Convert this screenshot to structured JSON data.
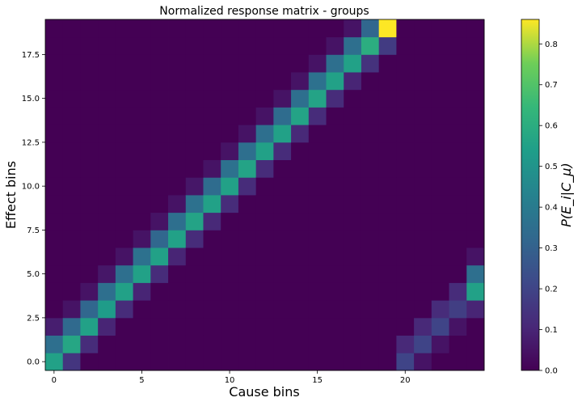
{
  "chart_data": {
    "type": "heatmap",
    "title": "Normalized response matrix - groups",
    "xlabel": "Cause bins",
    "ylabel": "Effect bins",
    "colorbar_label": "P(E_i|C_μ)",
    "colormap": "viridis",
    "n_cause_bins": 25,
    "n_effect_bins": 20,
    "xlim": [
      -0.5,
      24.5
    ],
    "ylim": [
      -0.5,
      19.5
    ],
    "x_ticks": [
      0,
      5,
      10,
      15,
      20
    ],
    "x_tick_labels": [
      "0",
      "5",
      "10",
      "15",
      "20"
    ],
    "y_ticks": [
      0.0,
      2.5,
      5.0,
      7.5,
      10.0,
      12.5,
      15.0,
      17.5
    ],
    "y_tick_labels": [
      "0.0",
      "2.5",
      "5.0",
      "7.5",
      "10.0",
      "12.5",
      "15.0",
      "17.5"
    ],
    "colorbar_range": [
      0.0,
      0.86
    ],
    "colorbar_ticks": [
      0.0,
      0.1,
      0.2,
      0.3,
      0.4,
      0.5,
      0.6,
      0.7,
      0.8
    ],
    "colorbar_tick_labels": [
      "0.0",
      "0.1",
      "0.2",
      "0.3",
      "0.4",
      "0.5",
      "0.6",
      "0.7",
      "0.8"
    ],
    "background_value": 0.0,
    "cells": [
      {
        "x": 0,
        "y": 0,
        "v": 0.55
      },
      {
        "x": 0,
        "y": 1,
        "v": 0.35
      },
      {
        "x": 0,
        "y": 2,
        "v": 0.08
      },
      {
        "x": 1,
        "y": 0,
        "v": 0.15
      },
      {
        "x": 1,
        "y": 1,
        "v": 0.57
      },
      {
        "x": 1,
        "y": 2,
        "v": 0.33
      },
      {
        "x": 1,
        "y": 3,
        "v": 0.05
      },
      {
        "x": 2,
        "y": 1,
        "v": 0.12
      },
      {
        "x": 2,
        "y": 2,
        "v": 0.55
      },
      {
        "x": 2,
        "y": 3,
        "v": 0.32
      },
      {
        "x": 2,
        "y": 4,
        "v": 0.05
      },
      {
        "x": 3,
        "y": 2,
        "v": 0.1
      },
      {
        "x": 3,
        "y": 3,
        "v": 0.53
      },
      {
        "x": 3,
        "y": 4,
        "v": 0.35
      },
      {
        "x": 3,
        "y": 5,
        "v": 0.06
      },
      {
        "x": 4,
        "y": 3,
        "v": 0.12
      },
      {
        "x": 4,
        "y": 4,
        "v": 0.55
      },
      {
        "x": 4,
        "y": 5,
        "v": 0.35
      },
      {
        "x": 4,
        "y": 6,
        "v": 0.05
      },
      {
        "x": 5,
        "y": 4,
        "v": 0.1
      },
      {
        "x": 5,
        "y": 5,
        "v": 0.55
      },
      {
        "x": 5,
        "y": 6,
        "v": 0.36
      },
      {
        "x": 5,
        "y": 7,
        "v": 0.05
      },
      {
        "x": 6,
        "y": 5,
        "v": 0.12
      },
      {
        "x": 6,
        "y": 6,
        "v": 0.55
      },
      {
        "x": 6,
        "y": 7,
        "v": 0.32
      },
      {
        "x": 6,
        "y": 8,
        "v": 0.05
      },
      {
        "x": 7,
        "y": 6,
        "v": 0.1
      },
      {
        "x": 7,
        "y": 7,
        "v": 0.55
      },
      {
        "x": 7,
        "y": 8,
        "v": 0.35
      },
      {
        "x": 7,
        "y": 9,
        "v": 0.05
      },
      {
        "x": 8,
        "y": 7,
        "v": 0.12
      },
      {
        "x": 8,
        "y": 8,
        "v": 0.56
      },
      {
        "x": 8,
        "y": 9,
        "v": 0.36
      },
      {
        "x": 8,
        "y": 10,
        "v": 0.06
      },
      {
        "x": 9,
        "y": 8,
        "v": 0.11
      },
      {
        "x": 9,
        "y": 9,
        "v": 0.55
      },
      {
        "x": 9,
        "y": 10,
        "v": 0.34
      },
      {
        "x": 9,
        "y": 11,
        "v": 0.05
      },
      {
        "x": 10,
        "y": 9,
        "v": 0.12
      },
      {
        "x": 10,
        "y": 10,
        "v": 0.55
      },
      {
        "x": 10,
        "y": 11,
        "v": 0.36
      },
      {
        "x": 10,
        "y": 12,
        "v": 0.05
      },
      {
        "x": 11,
        "y": 10,
        "v": 0.12
      },
      {
        "x": 11,
        "y": 11,
        "v": 0.56
      },
      {
        "x": 11,
        "y": 12,
        "v": 0.35
      },
      {
        "x": 11,
        "y": 13,
        "v": 0.05
      },
      {
        "x": 12,
        "y": 11,
        "v": 0.12
      },
      {
        "x": 12,
        "y": 12,
        "v": 0.55
      },
      {
        "x": 12,
        "y": 13,
        "v": 0.35
      },
      {
        "x": 12,
        "y": 14,
        "v": 0.05
      },
      {
        "x": 13,
        "y": 12,
        "v": 0.12
      },
      {
        "x": 13,
        "y": 13,
        "v": 0.55
      },
      {
        "x": 13,
        "y": 14,
        "v": 0.34
      },
      {
        "x": 13,
        "y": 15,
        "v": 0.05
      },
      {
        "x": 14,
        "y": 13,
        "v": 0.11
      },
      {
        "x": 14,
        "y": 14,
        "v": 0.56
      },
      {
        "x": 14,
        "y": 15,
        "v": 0.35
      },
      {
        "x": 14,
        "y": 16,
        "v": 0.05
      },
      {
        "x": 15,
        "y": 14,
        "v": 0.12
      },
      {
        "x": 15,
        "y": 15,
        "v": 0.56
      },
      {
        "x": 15,
        "y": 16,
        "v": 0.36
      },
      {
        "x": 15,
        "y": 17,
        "v": 0.05
      },
      {
        "x": 16,
        "y": 15,
        "v": 0.12
      },
      {
        "x": 16,
        "y": 16,
        "v": 0.55
      },
      {
        "x": 16,
        "y": 17,
        "v": 0.35
      },
      {
        "x": 16,
        "y": 18,
        "v": 0.05
      },
      {
        "x": 17,
        "y": 16,
        "v": 0.1
      },
      {
        "x": 17,
        "y": 17,
        "v": 0.55
      },
      {
        "x": 17,
        "y": 18,
        "v": 0.35
      },
      {
        "x": 17,
        "y": 19,
        "v": 0.05
      },
      {
        "x": 18,
        "y": 17,
        "v": 0.14
      },
      {
        "x": 18,
        "y": 18,
        "v": 0.6
      },
      {
        "x": 18,
        "y": 19,
        "v": 0.32
      },
      {
        "x": 19,
        "y": 18,
        "v": 0.17
      },
      {
        "x": 19,
        "y": 19,
        "v": 0.86
      },
      {
        "x": 20,
        "y": 0,
        "v": 0.2
      },
      {
        "x": 20,
        "y": 1,
        "v": 0.11
      },
      {
        "x": 21,
        "y": 0,
        "v": 0.05
      },
      {
        "x": 21,
        "y": 1,
        "v": 0.2
      },
      {
        "x": 21,
        "y": 2,
        "v": 0.11
      },
      {
        "x": 22,
        "y": 1,
        "v": 0.05
      },
      {
        "x": 22,
        "y": 2,
        "v": 0.2
      },
      {
        "x": 22,
        "y": 3,
        "v": 0.12
      },
      {
        "x": 23,
        "y": 2,
        "v": 0.05
      },
      {
        "x": 23,
        "y": 3,
        "v": 0.18
      },
      {
        "x": 23,
        "y": 4,
        "v": 0.12
      },
      {
        "x": 24,
        "y": 3,
        "v": 0.1
      },
      {
        "x": 24,
        "y": 4,
        "v": 0.55
      },
      {
        "x": 24,
        "y": 5,
        "v": 0.35
      },
      {
        "x": 24,
        "y": 6,
        "v": 0.05
      }
    ]
  }
}
